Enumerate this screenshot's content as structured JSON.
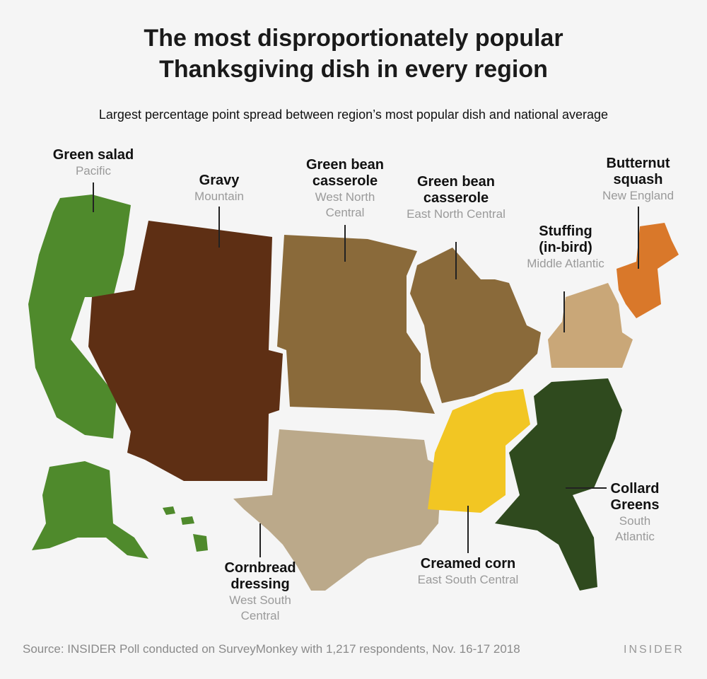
{
  "title_line1": "The most disproportionately popular",
  "title_line2": "Thanksgiving dish in every region",
  "subtitle": "Largest percentage point spread between region’s most popular dish and national average",
  "regions": [
    {
      "dish": "Green salad",
      "region": "Pacific",
      "color": "#4f8a2c"
    },
    {
      "dish": "Gravy",
      "region": "Mountain",
      "color": "#5e2f14"
    },
    {
      "dish": "Green bean casserole",
      "region": "West North Central",
      "color": "#8a6a3a"
    },
    {
      "dish": "Green bean casserole",
      "region": "East North Central",
      "color": "#8a6a3a"
    },
    {
      "dish": "Stuffing (in-bird)",
      "region": "Middle Atlantic",
      "color": "#c9a778"
    },
    {
      "dish": "Butternut squash",
      "region": "New England",
      "color": "#d9782a"
    },
    {
      "dish": "Cornbread dressing",
      "region": "West South Central",
      "color": "#bba98a"
    },
    {
      "dish": "Creamed corn",
      "region": "East South Central",
      "color": "#f2c623"
    },
    {
      "dish": "Collard Greens",
      "region": "South Atlantic",
      "color": "#2f4a1e"
    }
  ],
  "footer": {
    "source": "Source:  INSIDER Poll conducted on SurveyMonkey with 1,217 respondents,  Nov. 16-17 2018",
    "brand": "INSIDER"
  }
}
